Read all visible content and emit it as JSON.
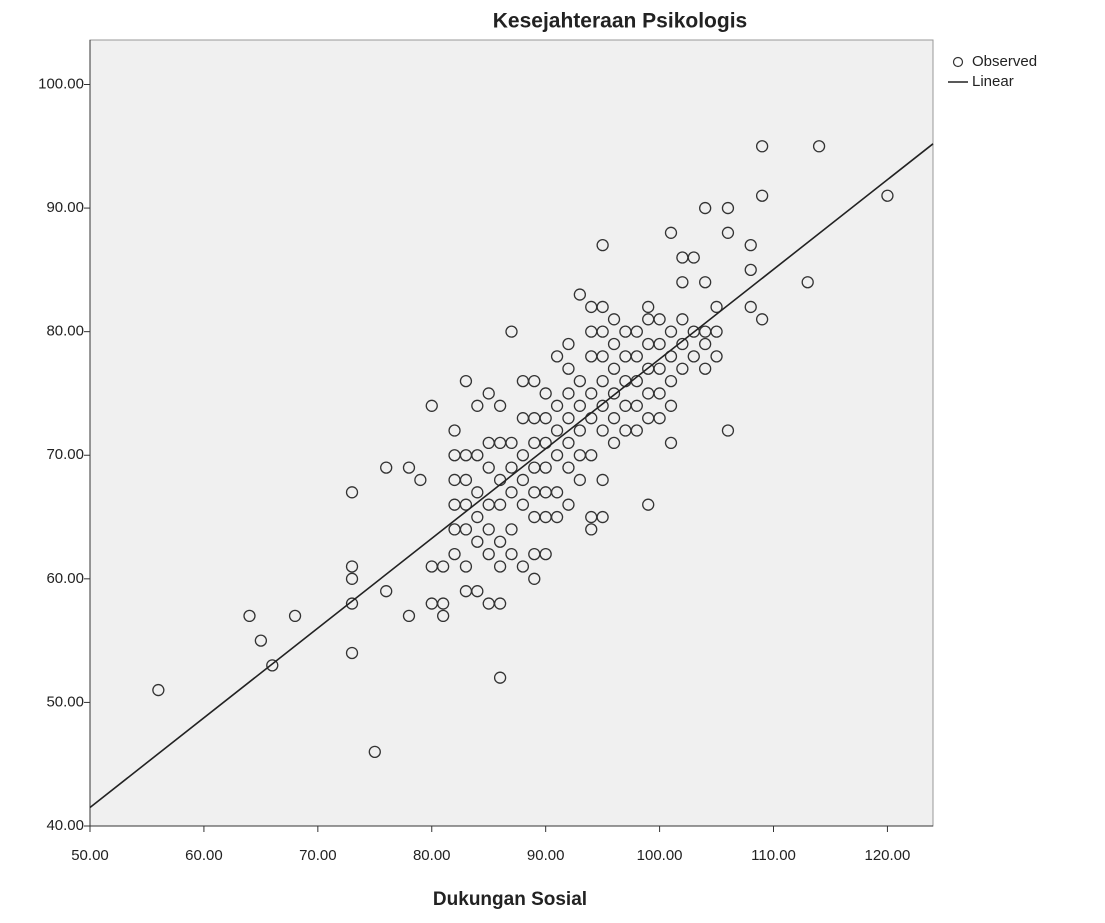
{
  "chart_data": {
    "type": "scatter",
    "title": "Kesejahteraan Psikologis",
    "x_label": "Dukungan Sosial",
    "xlim": [
      50,
      124
    ],
    "ylim": [
      40,
      103.6
    ],
    "xticks": [
      {
        "value": 50,
        "label": "50.00"
      },
      {
        "value": 60,
        "label": "60.00"
      },
      {
        "value": 70,
        "label": "70.00"
      },
      {
        "value": 80,
        "label": "80.00"
      },
      {
        "value": 90,
        "label": "90.00"
      },
      {
        "value": 100,
        "label": "100.00"
      },
      {
        "value": 110,
        "label": "110.00"
      },
      {
        "value": 120,
        "label": "120.00"
      }
    ],
    "yticks": [
      {
        "value": 40,
        "label": "40.00"
      },
      {
        "value": 50,
        "label": "50.00"
      },
      {
        "value": 60,
        "label": "60.00"
      },
      {
        "value": 70,
        "label": "70.00"
      },
      {
        "value": 80,
        "label": "80.00"
      },
      {
        "value": 90,
        "label": "90.00"
      },
      {
        "value": 100,
        "label": "100.00"
      }
    ],
    "legend": "outside-top-right",
    "series": [
      {
        "name": "Observed",
        "kind": "points",
        "color": "#333333",
        "x": [
          56,
          64,
          65,
          66,
          68,
          73,
          73,
          73,
          73,
          73,
          75,
          76,
          76,
          78,
          78,
          79,
          80,
          80,
          80,
          81,
          81,
          81,
          86,
          87,
          95,
          93,
          94,
          99,
          101,
          104,
          106,
          106,
          109,
          114,
          109,
          120,
          113,
          108,
          106,
          108,
          108,
          109,
          102,
          103,
          104,
          82,
          82,
          82,
          82,
          82,
          82,
          83,
          83,
          83,
          83,
          83,
          83,
          83,
          84,
          84,
          84,
          84,
          84,
          84,
          85,
          85,
          85,
          85,
          85,
          85,
          85,
          86,
          86,
          86,
          86,
          86,
          86,
          86,
          87,
          87,
          87,
          87,
          87,
          88,
          88,
          88,
          88,
          88,
          88,
          89,
          89,
          89,
          89,
          89,
          89,
          89,
          89,
          90,
          90,
          90,
          90,
          90,
          90,
          90,
          91,
          91,
          91,
          91,
          91,
          91,
          92,
          92,
          92,
          92,
          92,
          92,
          92,
          93,
          93,
          93,
          93,
          93,
          94,
          94,
          94,
          94,
          94,
          94,
          94,
          95,
          95,
          95,
          95,
          95,
          95,
          95,
          95,
          96,
          96,
          96,
          96,
          96,
          96,
          97,
          97,
          97,
          97,
          97,
          98,
          98,
          98,
          98,
          98,
          99,
          99,
          99,
          99,
          99,
          99,
          100,
          100,
          100,
          100,
          100,
          101,
          101,
          101,
          101,
          101,
          102,
          102,
          102,
          102,
          103,
          103,
          104,
          104,
          104,
          105,
          105,
          105
        ],
        "values": [
          51,
          57,
          55,
          53,
          57,
          67,
          61,
          60,
          58,
          54,
          46,
          59,
          69,
          57,
          69,
          68,
          74,
          61,
          58,
          58,
          57,
          61,
          52,
          80,
          87,
          83,
          82,
          66,
          88,
          90,
          90,
          72,
          95,
          95,
          91,
          91,
          84,
          87,
          88,
          85,
          82,
          81,
          86,
          86,
          84,
          62,
          64,
          66,
          68,
          70,
          72,
          59,
          61,
          64,
          66,
          68,
          70,
          76,
          59,
          63,
          65,
          67,
          70,
          74,
          58,
          62,
          64,
          66,
          69,
          71,
          75,
          58,
          61,
          63,
          66,
          68,
          71,
          74,
          62,
          64,
          67,
          69,
          71,
          61,
          66,
          68,
          70,
          73,
          76,
          60,
          62,
          65,
          67,
          69,
          71,
          73,
          76,
          62,
          65,
          67,
          69,
          71,
          73,
          75,
          65,
          67,
          70,
          72,
          74,
          78,
          66,
          69,
          71,
          73,
          75,
          77,
          79,
          68,
          70,
          72,
          74,
          76,
          64,
          65,
          70,
          73,
          75,
          78,
          80,
          65,
          68,
          72,
          74,
          76,
          78,
          80,
          82,
          71,
          73,
          75,
          77,
          79,
          81,
          72,
          74,
          76,
          78,
          80,
          72,
          74,
          76,
          78,
          80,
          73,
          75,
          77,
          79,
          81,
          82,
          73,
          75,
          77,
          79,
          81,
          71,
          74,
          76,
          78,
          80,
          77,
          79,
          81,
          84,
          78,
          80,
          77,
          79,
          80,
          78,
          80,
          82
        ]
      },
      {
        "name": "Linear",
        "kind": "line",
        "color": "#222222",
        "x": [
          50,
          124
        ],
        "values": [
          41.5,
          95.2
        ]
      }
    ]
  }
}
